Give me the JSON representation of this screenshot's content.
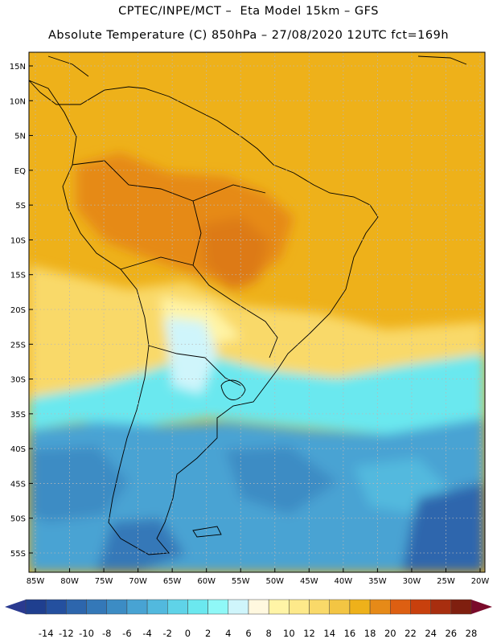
{
  "header": {
    "line1": "CPTEC/INPE/MCT –  Eta Model 15km – GFS",
    "line2": "Absolute Temperature (C) 850hPa – 27/08/2020 12UTC fct=169h"
  },
  "map": {
    "lat_labels": [
      "15N",
      "10N",
      "5N",
      "EQ",
      "5S",
      "10S",
      "15S",
      "20S",
      "25S",
      "30S",
      "35S",
      "40S",
      "45S",
      "50S",
      "55S"
    ],
    "lon_labels": [
      "85W",
      "80W",
      "75W",
      "70W",
      "65W",
      "60W",
      "55W",
      "50W",
      "45W",
      "40W",
      "35W",
      "30W",
      "25W",
      "20W"
    ],
    "lat_values": [
      15,
      10,
      5,
      0,
      -5,
      -10,
      -15,
      -20,
      -25,
      -30,
      -35,
      -40,
      -45,
      -50,
      -55
    ],
    "lon_values": [
      -85,
      -80,
      -75,
      -70,
      -65,
      -60,
      -55,
      -50,
      -45,
      -40,
      -35,
      -30,
      -25,
      -20
    ],
    "field": "Absolute Temperature (C) at 850hPa"
  },
  "legend": {
    "labels": [
      "-14",
      "-12",
      "-10",
      "-8",
      "-6",
      "-4",
      "-2",
      "0",
      "2",
      "4",
      "6",
      "8",
      "10",
      "12",
      "14",
      "16",
      "18",
      "20",
      "22",
      "24",
      "26",
      "28"
    ],
    "colors": [
      "#1f3f8f",
      "#24509f",
      "#2d66ad",
      "#3478b8",
      "#3c8cc4",
      "#48a3d3",
      "#52b9de",
      "#5fd3e8",
      "#6be8ef",
      "#8ff8f7",
      "#cff5fb",
      "#fff8df",
      "#fff4a6",
      "#fde98a",
      "#f9d969",
      "#f3c543",
      "#eeb11a",
      "#e68a18",
      "#dd5f12",
      "#c8400d",
      "#a82e0f",
      "#7f1f0f"
    ],
    "under_color": "#2a3a90",
    "over_color": "#7a0a2a"
  }
}
